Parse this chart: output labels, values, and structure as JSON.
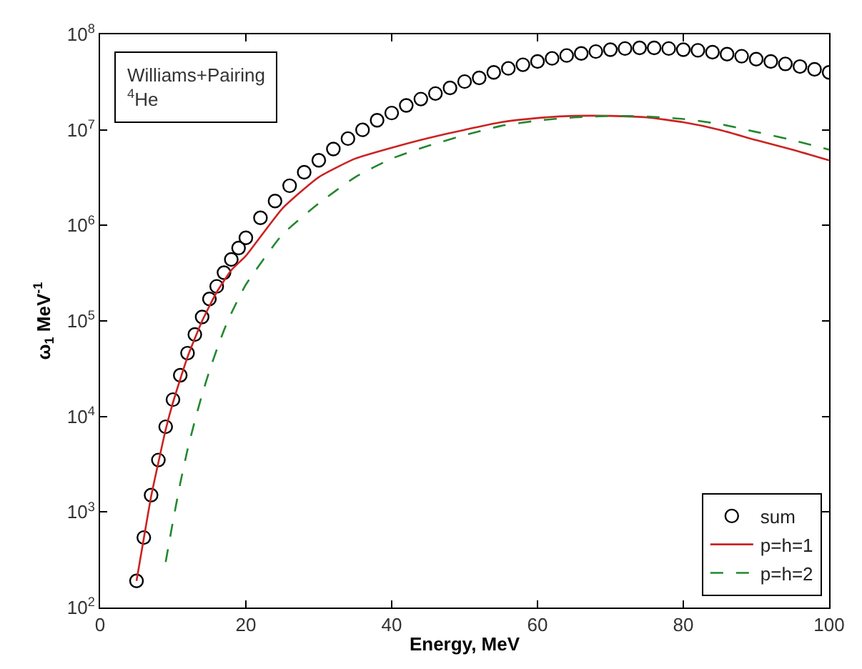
{
  "chart_data": {
    "type": "line",
    "xlabel": "Energy, MeV",
    "ylabel": "ω$_{1}$ MeV$^{-1}$",
    "annotations": [
      "Williams+Pairing",
      "$^{4}$He"
    ],
    "xlim": [
      0,
      100
    ],
    "xticks": [
      0,
      20,
      40,
      60,
      80,
      100
    ],
    "ylim": [
      100,
      100000000
    ],
    "log": true,
    "yticks": [
      {
        "value": 100,
        "label": "10$^{2}$"
      },
      {
        "value": 1000,
        "label": "10$^{3}$"
      },
      {
        "value": 10000,
        "label": "10$^{4}$"
      },
      {
        "value": 100000,
        "label": "10$^{5}$"
      },
      {
        "value": 1000000,
        "label": "10$^{6}$"
      },
      {
        "value": 10000000,
        "label": "10$^{7}$"
      },
      {
        "value": 100000000,
        "label": "10$^{8}$"
      }
    ],
    "legend": "bottom right",
    "series": [
      {
        "name": "sum",
        "type": "scatter",
        "marker": "circle",
        "color": "#000000",
        "x": [
          5,
          6,
          7,
          8,
          9,
          10,
          11,
          12,
          13,
          14,
          15,
          16,
          17,
          18,
          19,
          20,
          22,
          24,
          26,
          28,
          30,
          32,
          34,
          36,
          38,
          40,
          42,
          44,
          46,
          48,
          50,
          52,
          54,
          56,
          58,
          60,
          62,
          64,
          66,
          68,
          70,
          72,
          74,
          76,
          78,
          80,
          82,
          84,
          86,
          88,
          90,
          92,
          94,
          96,
          98,
          100
        ],
        "values": [
          190,
          540,
          1500,
          3500,
          7800,
          15000,
          27000,
          46000,
          72000,
          110000,
          170000,
          230000,
          320000,
          440000,
          580000,
          740000,
          1200000,
          1800000,
          2600000,
          3600000,
          4800000,
          6300000,
          8100000,
          10000000,
          12600000,
          15000000,
          18000000,
          21000000,
          24000000,
          27500000,
          32000000,
          35000000,
          40000000,
          44000000,
          48000000,
          52000000,
          56000000,
          60000000,
          63000000,
          66000000,
          69000000,
          71000000,
          72000000,
          72000000,
          71000000,
          69000000,
          68000000,
          65000000,
          62000000,
          59000000,
          55000000,
          52000000,
          49000000,
          46000000,
          43000000,
          40000000
        ]
      },
      {
        "name": "p=h=1",
        "line_style": "solid",
        "color": "#cc2222",
        "x": [
          5,
          6,
          7,
          8,
          9,
          10,
          12,
          14,
          16,
          18,
          20,
          25,
          30,
          35,
          40,
          45,
          50,
          55,
          60,
          65,
          70,
          75,
          80,
          85,
          90,
          95,
          100
        ],
        "values": [
          190,
          530,
          1450,
          3300,
          7300,
          14000,
          42000,
          100000,
          200000,
          340000,
          480000,
          1500000,
          3200000,
          5000000,
          6500000,
          8200000,
          10000000,
          12000000,
          13300000,
          14000000,
          14000000,
          13500000,
          12000000,
          10000000,
          7800000,
          6200000,
          4800000
        ]
      },
      {
        "name": "p=h=2",
        "line_style": "dashed",
        "color": "#22882e",
        "x": [
          9,
          10,
          11,
          12,
          13,
          14,
          15,
          16,
          17,
          18,
          20,
          25,
          30,
          35,
          40,
          45,
          50,
          55,
          60,
          65,
          70,
          75,
          80,
          85,
          90,
          95,
          100
        ],
        "values": [
          300,
          800,
          2000,
          4500,
          9000,
          17000,
          30000,
          50000,
          80000,
          120000,
          240000,
          800000,
          1700000,
          3200000,
          5000000,
          6800000,
          8800000,
          11000000,
          12500000,
          13500000,
          14000000,
          13800000,
          13000000,
          11500000,
          9500000,
          7800000,
          6200000
        ]
      }
    ]
  }
}
